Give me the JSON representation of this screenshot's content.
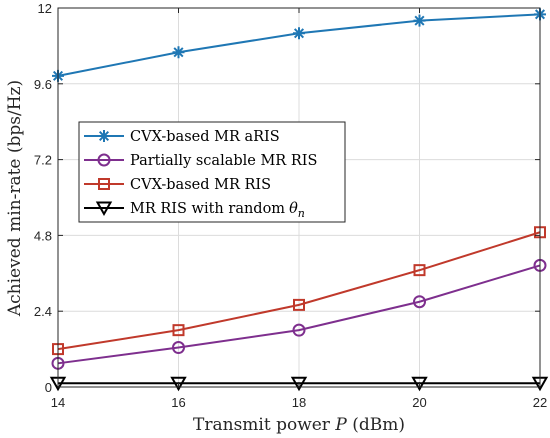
{
  "chart_data": {
    "type": "line",
    "title": "",
    "xlabel": "Transmit power",
    "xlabel_var": "P",
    "xlabel_unit": "(dBm)",
    "ylabel": "Achieved min-rate (bps/Hz)",
    "x": [
      14,
      16,
      18,
      20,
      22
    ],
    "xticks": [
      "14",
      "16",
      "18",
      "20",
      "22"
    ],
    "yticks": [
      "0",
      "2.4",
      "4.8",
      "7.2",
      "9.6",
      "12"
    ],
    "xlim": [
      14,
      22
    ],
    "ylim": [
      0,
      12
    ],
    "grid": true,
    "legend_position": "center-left",
    "series": [
      {
        "name": "CVX-based MR aRIS",
        "marker": "star",
        "color": "#1f77b4",
        "values": [
          9.85,
          10.6,
          11.2,
          11.6,
          11.8
        ]
      },
      {
        "name": "Partially scalable MR RIS",
        "marker": "circle",
        "color": "#7e2f8e",
        "values": [
          0.75,
          1.25,
          1.8,
          2.7,
          3.85
        ]
      },
      {
        "name": "CVX-based MR RIS",
        "marker": "square",
        "color": "#c0392b",
        "values": [
          1.2,
          1.8,
          2.6,
          3.7,
          4.9
        ]
      },
      {
        "name": "MR RIS with random",
        "name_var": "θ",
        "name_sub": "n",
        "marker": "triangle-down",
        "color": "#000000",
        "values": [
          0.12,
          0.12,
          0.12,
          0.12,
          0.12
        ]
      }
    ]
  }
}
